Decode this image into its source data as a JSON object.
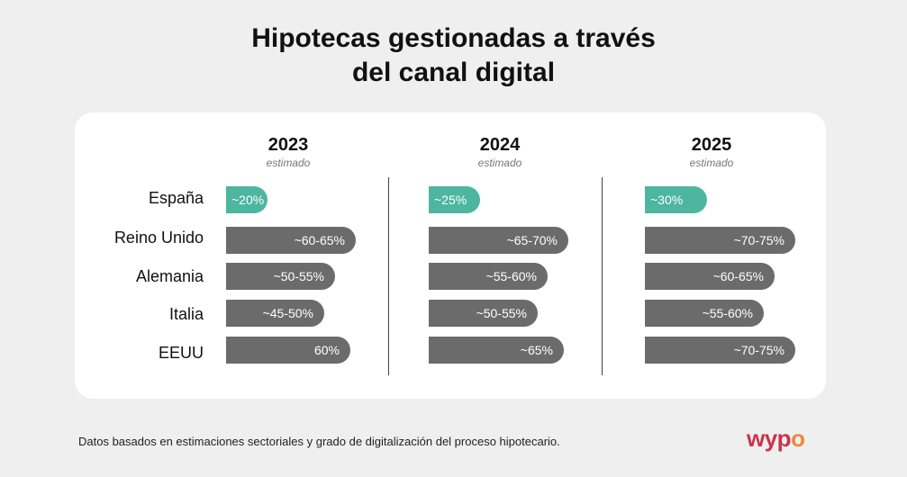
{
  "title_line1": "Hipotecas gestionadas a través",
  "title_line2": "del canal digital",
  "footnote": "Datos basados en estimaciones sectoriales y grado de digitalización del proceso hipotecario.",
  "logo": {
    "main": "wyp",
    "accent": "o"
  },
  "colors": {
    "highlight": "#4db6a0",
    "bar": "#6b6b6b",
    "card": "#ffffff",
    "background": "#efefef",
    "logo": "#c8344a",
    "logo_accent": "#ea8a3a"
  },
  "chart_data": [
    {
      "type": "bar",
      "orientation": "horizontal",
      "title": "2023",
      "subtitle": "estimado",
      "categories": [
        "España",
        "Reino Unido",
        "Alemania",
        "Italia",
        "EEUU"
      ],
      "values": [
        20,
        62.5,
        52.5,
        47.5,
        60
      ],
      "labels": [
        "~20%",
        "~60-65%",
        "~50-55%",
        "~45-50%",
        "60%"
      ],
      "highlight": [
        "España"
      ]
    },
    {
      "type": "bar",
      "orientation": "horizontal",
      "title": "2024",
      "subtitle": "estimado",
      "categories": [
        "España",
        "Reino Unido",
        "Alemania",
        "Italia",
        "EEUU"
      ],
      "values": [
        25,
        67.5,
        57.5,
        52.5,
        65
      ],
      "labels": [
        "~25%",
        "~65-70%",
        "~55-60%",
        "~50-55%",
        "~65%"
      ],
      "highlight": [
        "España"
      ]
    },
    {
      "type": "bar",
      "orientation": "horizontal",
      "title": "2025",
      "subtitle": "estimado",
      "categories": [
        "España",
        "Reino Unido",
        "Alemania",
        "Italia",
        "EEUU"
      ],
      "values": [
        30,
        72.5,
        62.5,
        57.5,
        72.5
      ],
      "labels": [
        "~30%",
        "~70-75%",
        "~60-65%",
        "~55-60%",
        "~70-75%"
      ],
      "highlight": [
        "España"
      ]
    }
  ]
}
